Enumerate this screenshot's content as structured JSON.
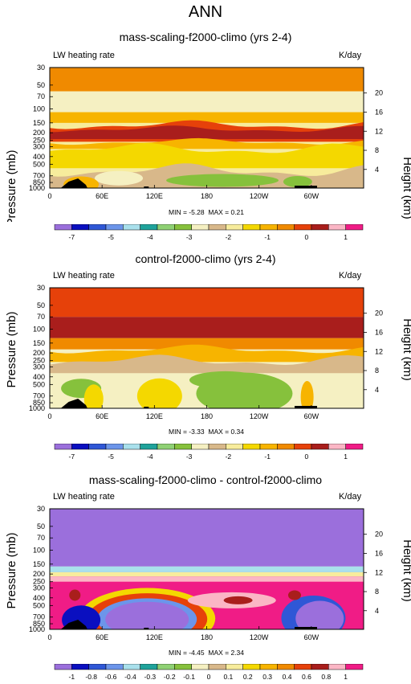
{
  "title": "ANN",
  "panels": [
    {
      "title": "mass-scaling-f2000-climo (yrs 2-4)",
      "left_label": "LW heating rate",
      "right_label": "K/day",
      "minmax": "MIN = -5.28  MAX = 0.21",
      "cbar_labels": [
        "-7",
        "-5",
        "-4",
        "-3",
        "-2",
        "-1",
        "0",
        "1"
      ],
      "cbar_colors": [
        "#9b6fdc",
        "#0a0fc0",
        "#2f57d6",
        "#6c95ea",
        "#a9e0ec",
        "#1fa39b",
        "#8fd174",
        "#86c13c",
        "#f5f0c2",
        "#d8b88a",
        "#f7ec9c",
        "#f4d800",
        "#f7b400",
        "#f08a00",
        "#e6410a",
        "#a91e1c",
        "#fbb6c5",
        "#f01c86"
      ]
    },
    {
      "title": "control-f2000-climo (yrs 2-4)",
      "left_label": "LW heating rate",
      "right_label": "K/day",
      "minmax": "MIN = -3.33  MAX = 0.34",
      "cbar_labels": [
        "-7",
        "-5",
        "-4",
        "-3",
        "-2",
        "-1",
        "0",
        "1"
      ],
      "cbar_colors": [
        "#9b6fdc",
        "#0a0fc0",
        "#2f57d6",
        "#6c95ea",
        "#a9e0ec",
        "#1fa39b",
        "#8fd174",
        "#86c13c",
        "#f5f0c2",
        "#d8b88a",
        "#f7ec9c",
        "#f4d800",
        "#f7b400",
        "#f08a00",
        "#e6410a",
        "#a91e1c",
        "#fbb6c5",
        "#f01c86"
      ]
    },
    {
      "title": "mass-scaling-f2000-climo - control-f2000-climo",
      "left_label": "LW heating rate",
      "right_label": "K/day",
      "minmax": "MIN = -4.45  MAX = 2.34",
      "cbar_labels": [
        "-1",
        "-0.8",
        "-0.6",
        "-0.4",
        "-0.3",
        "-0.2",
        "-0.1",
        "0",
        "0.1",
        "0.2",
        "0.3",
        "0.4",
        "0.6",
        "0.8",
        "1"
      ],
      "cbar_colors": [
        "#9b6fdc",
        "#0a0fc0",
        "#2f57d6",
        "#6c95ea",
        "#a9e0ec",
        "#1fa39b",
        "#8fd174",
        "#86c13c",
        "#f5f0c2",
        "#d8b88a",
        "#f7ec9c",
        "#f4d800",
        "#f7b400",
        "#f08a00",
        "#e6410a",
        "#a91e1c",
        "#fbb6c5",
        "#f01c86"
      ]
    }
  ],
  "chart_data": [
    {
      "type": "heatmap",
      "title": "mass-scaling-f2000-climo (yrs 2-4)",
      "xlabel": "",
      "ylabel": "Pressure (mb)",
      "ylabel_right": "Height (km)",
      "x_ticks": [
        "0",
        "60E",
        "120E",
        "180",
        "120W",
        "60W"
      ],
      "y_ticks": [
        "30",
        "50",
        "70",
        "100",
        "150",
        "200",
        "250",
        "300",
        "400",
        "500",
        "700",
        "850",
        "1000"
      ],
      "height_ticks": [
        "20",
        "16",
        "12",
        "8",
        "4"
      ],
      "units": "K/day",
      "min": -5.28,
      "max": 0.21
    },
    {
      "type": "heatmap",
      "title": "control-f2000-climo (yrs 2-4)",
      "xlabel": "",
      "ylabel": "Pressure (mb)",
      "ylabel_right": "Height (km)",
      "x_ticks": [
        "0",
        "60E",
        "120E",
        "180",
        "120W",
        "60W"
      ],
      "y_ticks": [
        "30",
        "50",
        "70",
        "100",
        "150",
        "200",
        "250",
        "300",
        "400",
        "500",
        "700",
        "850",
        "1000"
      ],
      "height_ticks": [
        "20",
        "16",
        "12",
        "8",
        "4"
      ],
      "units": "K/day",
      "min": -3.33,
      "max": 0.34
    },
    {
      "type": "heatmap",
      "title": "mass-scaling-f2000-climo - control-f2000-climo",
      "xlabel": "",
      "ylabel": "Pressure (mb)",
      "ylabel_right": "Height (km)",
      "x_ticks": [
        "0",
        "60E",
        "120E",
        "180",
        "120W",
        "60W"
      ],
      "y_ticks": [
        "30",
        "50",
        "70",
        "100",
        "150",
        "200",
        "250",
        "300",
        "400",
        "500",
        "700",
        "850",
        "1000"
      ],
      "height_ticks": [
        "20",
        "16",
        "12",
        "8",
        "4"
      ],
      "units": "K/day",
      "min": -4.45,
      "max": 2.34
    }
  ]
}
